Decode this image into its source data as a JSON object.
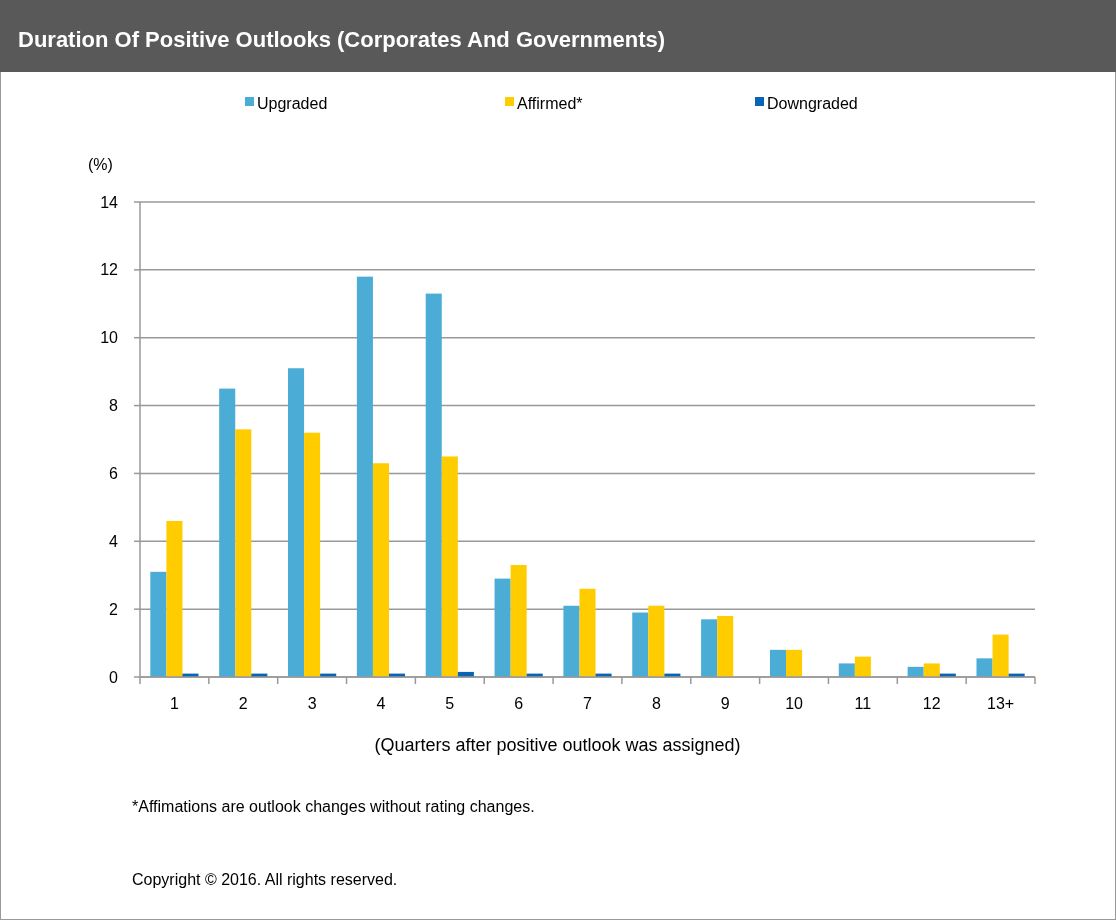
{
  "chart_data": {
    "type": "bar",
    "title": "Duration Of Positive Outlooks (Corporates And Governments)",
    "ylabel": "(%)",
    "xlabel": "(Quarters after positive outlook was assigned)",
    "categories": [
      "1",
      "2",
      "3",
      "4",
      "5",
      "6",
      "7",
      "8",
      "9",
      "10",
      "11",
      "12",
      "13+"
    ],
    "series": [
      {
        "name": "Upgraded",
        "color": "#4bacd6",
        "values": [
          3.1,
          8.5,
          9.1,
          11.8,
          11.3,
          2.9,
          2.1,
          1.9,
          1.7,
          0.8,
          0.4,
          0.3,
          0.55
        ]
      },
      {
        "name": "Affirmed*",
        "color": "#ffcc00",
        "values": [
          4.6,
          7.3,
          7.2,
          6.3,
          6.5,
          3.3,
          2.6,
          2.1,
          1.8,
          0.8,
          0.6,
          0.4,
          1.25
        ]
      },
      {
        "name": "Downgraded",
        "color": "#0a64b4",
        "values": [
          0.1,
          0.1,
          0.1,
          0.1,
          0.15,
          0.1,
          0.1,
          0.1,
          0,
          0,
          0,
          0.1,
          0.1
        ]
      }
    ],
    "ylim": [
      0,
      14
    ],
    "yticks": [
      0,
      2,
      4,
      6,
      8,
      10,
      12,
      14
    ],
    "grid": "y",
    "legend": "top",
    "annotations": [
      "*Affimations are outlook changes without rating changes.",
      "Copyright © 2016. All rights reserved."
    ]
  }
}
